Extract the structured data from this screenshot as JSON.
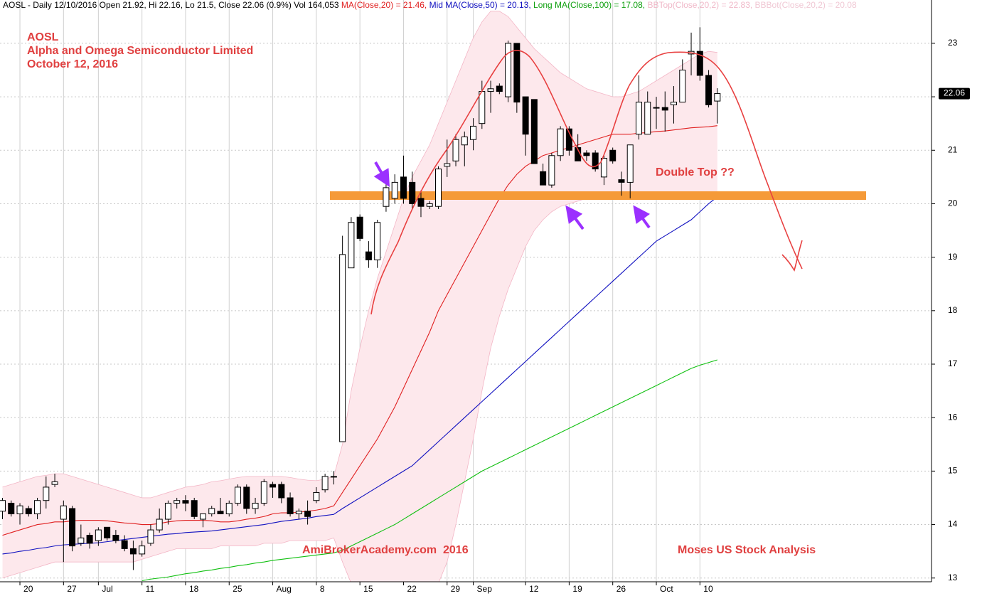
{
  "chart_data": {
    "type": "candlestick",
    "header": [
      {
        "text": "AOSL - Daily 12/10/2016 Open 21.92, Hi 22.16, Lo 21.5, Close 22.06 (0.9%) Vol 164,053 ",
        "color": "#000000"
      },
      {
        "text": "MA(Close,20) = 21.46, ",
        "color": "#e02020"
      },
      {
        "text": "Mid MA(Close,50) = 20.13, ",
        "color": "#1010c0"
      },
      {
        "text": "Long MA(Close,100) = 17.08, ",
        "color": "#10a010"
      },
      {
        "text": "BBTop(Close,20,2) = 22.83, ",
        "color": "#f0b8c8"
      },
      {
        "text": "BBBot(Close,20,2) = 20.08",
        "color": "#f0c8d4"
      }
    ],
    "title_lines": [
      "AOSL",
      "Alpha and Omega Semiconductor Limited",
      "October 12, 2016"
    ],
    "annotation": "Double Top ??",
    "footer_left": "AmiBrokerAcademy.com  2016",
    "footer_right": "Moses US Stock Analysis",
    "categories": [
      null,
      null,
      "20",
      null,
      null,
      null,
      null,
      "27",
      null,
      null,
      null,
      "Jul",
      null,
      null,
      null,
      null,
      "11",
      null,
      null,
      null,
      null,
      "18",
      null,
      null,
      null,
      null,
      "25",
      null,
      null,
      null,
      null,
      "Aug",
      null,
      null,
      null,
      null,
      "8",
      null,
      null,
      null,
      null,
      "15",
      null,
      null,
      null,
      null,
      "22",
      null,
      null,
      null,
      null,
      "29",
      null,
      null,
      "Sep",
      null,
      null,
      null,
      null,
      null,
      "12",
      null,
      null,
      null,
      null,
      "19",
      null,
      null,
      null,
      null,
      "26",
      null,
      null,
      null,
      null,
      "Oct",
      null,
      null,
      null,
      null,
      "10",
      null,
      null
    ],
    "open": [
      14.25,
      14.4,
      14.2,
      14.3,
      14.2,
      14.45,
      14.75,
      14.1,
      14.3,
      13.65,
      13.8,
      13.7,
      13.95,
      13.8,
      13.7,
      13.55,
      13.45,
      13.65,
      13.9,
      14.1,
      14.4,
      14.45,
      14.45,
      14.1,
      14.2,
      14.25,
      14.2,
      14.4,
      14.7,
      14.3,
      14.4,
      14.75,
      14.75,
      14.5,
      14.2,
      14.25,
      14.45,
      14.65,
      14.9,
      15.55,
      18.8,
      19.75,
      19.1,
      18.95,
      19.95,
      20.1,
      20.5,
      20.4,
      20.1,
      19.95,
      19.95,
      20.7,
      20.8,
      21.1,
      21.2,
      21.5,
      22.1,
      22.2,
      22.0,
      23.0,
      22.0,
      21.95,
      20.6,
      20.35,
      20.9,
      21.4,
      21.05,
      20.95,
      20.95,
      20.5,
      21.0,
      20.45,
      20.4,
      21.3,
      21.3,
      21.8,
      21.8,
      21.85,
      21.9,
      22.8,
      22.85,
      22.4,
      21.92
    ],
    "high": [
      14.5,
      14.45,
      14.4,
      14.35,
      14.5,
      14.9,
      14.95,
      14.45,
      14.35,
      14.0,
      13.85,
      13.95,
      13.95,
      13.9,
      13.8,
      13.7,
      13.7,
      14.0,
      14.3,
      14.45,
      14.5,
      14.55,
      14.5,
      14.2,
      14.35,
      14.5,
      14.45,
      14.75,
      14.75,
      14.5,
      14.85,
      14.8,
      14.8,
      14.6,
      14.3,
      14.45,
      14.7,
      14.95,
      15.0,
      19.4,
      19.75,
      19.8,
      19.3,
      19.7,
      20.45,
      20.55,
      20.9,
      20.6,
      20.25,
      20.05,
      20.7,
      21.2,
      21.3,
      21.35,
      21.6,
      22.3,
      22.3,
      22.25,
      23.05,
      23.0,
      22.0,
      21.95,
      20.75,
      20.95,
      21.45,
      21.45,
      21.3,
      21.0,
      21.0,
      20.9,
      21.05,
      20.6,
      21.1,
      22.4,
      22.1,
      22.0,
      22.1,
      22.2,
      22.7,
      23.2,
      23.3,
      22.5,
      22.16
    ],
    "low": [
      14.1,
      14.15,
      14.0,
      14.15,
      14.1,
      14.3,
      14.7,
      13.3,
      13.5,
      13.6,
      13.55,
      13.6,
      13.7,
      13.65,
      13.5,
      13.15,
      13.4,
      13.6,
      13.85,
      14.0,
      14.3,
      14.25,
      14.1,
      13.95,
      14.15,
      14.2,
      14.15,
      14.35,
      14.2,
      14.2,
      14.35,
      14.5,
      14.4,
      14.15,
      14.1,
      14.0,
      14.4,
      14.6,
      14.75,
      15.55,
      18.8,
      19.3,
      18.8,
      18.8,
      19.85,
      20.0,
      20.0,
      19.9,
      19.75,
      19.9,
      19.9,
      20.5,
      20.7,
      20.7,
      21.0,
      21.4,
      21.7,
      22.05,
      21.9,
      21.7,
      20.9,
      20.75,
      20.35,
      20.3,
      20.8,
      20.9,
      20.85,
      20.8,
      20.6,
      20.35,
      20.75,
      20.15,
      20.1,
      21.2,
      21.3,
      21.4,
      21.35,
      21.5,
      21.9,
      22.4,
      22.3,
      21.8,
      21.5
    ],
    "close": [
      14.45,
      14.2,
      14.35,
      14.2,
      14.45,
      14.7,
      14.8,
      14.35,
      13.6,
      13.75,
      13.65,
      13.9,
      13.75,
      13.7,
      13.55,
      13.45,
      13.6,
      13.9,
      14.1,
      14.4,
      14.45,
      14.4,
      14.15,
      14.2,
      14.3,
      14.2,
      14.4,
      14.7,
      14.3,
      14.4,
      14.8,
      14.7,
      14.5,
      14.2,
      14.25,
      14.15,
      14.6,
      14.9,
      14.9,
      19.05,
      19.65,
      19.35,
      18.95,
      19.65,
      20.3,
      20.4,
      20.1,
      20.0,
      19.95,
      20.0,
      20.65,
      20.75,
      21.2,
      21.25,
      21.45,
      22.1,
      22.15,
      22.1,
      23.0,
      21.9,
      21.3,
      20.75,
      20.35,
      20.9,
      21.4,
      21.0,
      20.8,
      20.9,
      20.65,
      20.85,
      20.8,
      20.4,
      21.1,
      21.9,
      21.9,
      21.8,
      21.75,
      21.9,
      22.5,
      22.85,
      22.4,
      21.85,
      22.06
    ],
    "overlays": [
      {
        "color": "#f3b6c6",
        "role": "band-top",
        "values": [
          14.7,
          14.75,
          14.8,
          14.85,
          14.9,
          14.92,
          14.95,
          14.95,
          14.9,
          14.85,
          14.8,
          14.75,
          14.7,
          14.65,
          14.6,
          14.55,
          14.5,
          14.5,
          14.55,
          14.6,
          14.65,
          14.7,
          14.72,
          14.75,
          14.8,
          14.82,
          14.85,
          14.88,
          14.9,
          14.9,
          14.9,
          14.9,
          14.9,
          14.88,
          14.85,
          14.83,
          14.82,
          14.85,
          14.9,
          15.5,
          16.5,
          17.3,
          18.0,
          18.6,
          19.1,
          19.6,
          20.1,
          20.5,
          20.8,
          21.1,
          21.5,
          21.9,
          22.3,
          22.7,
          23.1,
          23.4,
          23.6,
          23.6,
          23.5,
          23.3,
          23.1,
          22.9,
          22.75,
          22.6,
          22.45,
          22.35,
          22.25,
          22.15,
          22.1,
          22.05,
          22.0,
          22.0,
          22.05,
          22.1,
          22.2,
          22.3,
          22.4,
          22.5,
          22.6,
          22.7,
          22.8,
          22.85,
          22.83
        ]
      },
      {
        "color": "#f3b6c6",
        "role": "band-bottom",
        "values": [
          13.0,
          13.05,
          13.1,
          13.15,
          13.2,
          13.25,
          13.3,
          13.3,
          13.3,
          13.3,
          13.3,
          13.3,
          13.3,
          13.3,
          13.3,
          13.3,
          13.35,
          13.4,
          13.45,
          13.5,
          13.55,
          13.55,
          13.55,
          13.55,
          13.55,
          13.6,
          13.6,
          13.6,
          13.6,
          13.6,
          13.65,
          13.65,
          13.65,
          13.7,
          13.7,
          13.7,
          13.7,
          13.7,
          13.75,
          13.3,
          12.9,
          12.8,
          12.8,
          12.8,
          12.8,
          12.8,
          12.8,
          12.8,
          12.8,
          12.8,
          12.9,
          13.3,
          14.0,
          14.8,
          15.6,
          16.5,
          17.3,
          17.9,
          18.4,
          18.8,
          19.2,
          19.5,
          19.7,
          19.85,
          19.95,
          20.0,
          20.05,
          20.1,
          20.1,
          20.1,
          20.1,
          20.1,
          20.1,
          20.1,
          20.1,
          20.1,
          20.1,
          20.1,
          20.1,
          20.1,
          20.1,
          20.1,
          20.08
        ]
      },
      {
        "color": "#e02020",
        "role": "line",
        "values": [
          13.8,
          13.85,
          13.9,
          13.95,
          14.0,
          14.02,
          14.05,
          14.05,
          14.07,
          14.08,
          14.08,
          14.08,
          14.07,
          14.05,
          14.03,
          14.02,
          14.0,
          14.0,
          14.02,
          14.05,
          14.07,
          14.08,
          14.08,
          14.08,
          14.07,
          14.05,
          14.05,
          14.07,
          14.1,
          14.12,
          14.15,
          14.2,
          14.22,
          14.22,
          14.23,
          14.25,
          14.27,
          14.3,
          14.35,
          14.6,
          14.85,
          15.1,
          15.35,
          15.6,
          15.9,
          16.2,
          16.55,
          16.9,
          17.25,
          17.6,
          18.0,
          18.3,
          18.6,
          18.9,
          19.2,
          19.5,
          19.8,
          20.1,
          20.35,
          20.55,
          20.7,
          20.8,
          20.9,
          20.95,
          21.0,
          21.05,
          21.1,
          21.15,
          21.2,
          21.25,
          21.3,
          21.3,
          21.3,
          21.32,
          21.33,
          21.35,
          21.36,
          21.38,
          21.4,
          21.42,
          21.43,
          21.44,
          21.46
        ]
      },
      {
        "color": "#1010c0",
        "role": "line",
        "values": [
          13.45,
          13.47,
          13.5,
          13.52,
          13.55,
          13.57,
          13.6,
          13.62,
          13.63,
          13.64,
          13.65,
          13.66,
          13.68,
          13.7,
          13.72,
          13.74,
          13.76,
          13.78,
          13.8,
          13.82,
          13.83,
          13.85,
          13.86,
          13.87,
          13.88,
          13.9,
          13.92,
          13.94,
          13.96,
          13.98,
          14.0,
          14.03,
          14.06,
          14.08,
          14.1,
          14.12,
          14.15,
          14.17,
          14.19,
          14.3,
          14.4,
          14.5,
          14.6,
          14.7,
          14.8,
          14.9,
          15.0,
          15.1,
          15.25,
          15.4,
          15.55,
          15.7,
          15.85,
          16.0,
          16.15,
          16.3,
          16.45,
          16.6,
          16.75,
          16.9,
          17.05,
          17.2,
          17.35,
          17.5,
          17.65,
          17.8,
          17.95,
          18.1,
          18.25,
          18.4,
          18.55,
          18.7,
          18.85,
          19.0,
          19.15,
          19.3,
          19.4,
          19.5,
          19.6,
          19.7,
          19.85,
          20.0,
          20.13
        ]
      },
      {
        "color": "#10c010",
        "role": "line",
        "values": [
          null,
          null,
          null,
          null,
          null,
          null,
          null,
          null,
          null,
          null,
          null,
          null,
          null,
          null,
          null,
          null,
          12.95,
          12.98,
          13.0,
          13.02,
          13.05,
          13.08,
          13.1,
          13.13,
          13.15,
          13.18,
          13.2,
          13.23,
          13.25,
          13.28,
          13.3,
          13.33,
          13.35,
          13.37,
          13.39,
          13.41,
          13.43,
          13.45,
          13.47,
          13.52,
          13.6,
          13.68,
          13.76,
          13.84,
          13.92,
          14.0,
          14.1,
          14.2,
          14.3,
          14.4,
          14.5,
          14.6,
          14.7,
          14.8,
          14.9,
          15.0,
          15.08,
          15.16,
          15.24,
          15.32,
          15.4,
          15.48,
          15.56,
          15.64,
          15.72,
          15.8,
          15.88,
          15.96,
          16.04,
          16.12,
          16.2,
          16.28,
          16.36,
          16.44,
          16.52,
          16.6,
          16.68,
          16.76,
          16.84,
          16.92,
          16.98,
          17.03,
          17.08
        ]
      }
    ],
    "ylim": [
      12.93,
      23.81
    ],
    "yticks": [
      13,
      14,
      15,
      16,
      17,
      18,
      19,
      20,
      21,
      22,
      23
    ],
    "grid": true,
    "band_fill": "#fde8ec"
  }
}
